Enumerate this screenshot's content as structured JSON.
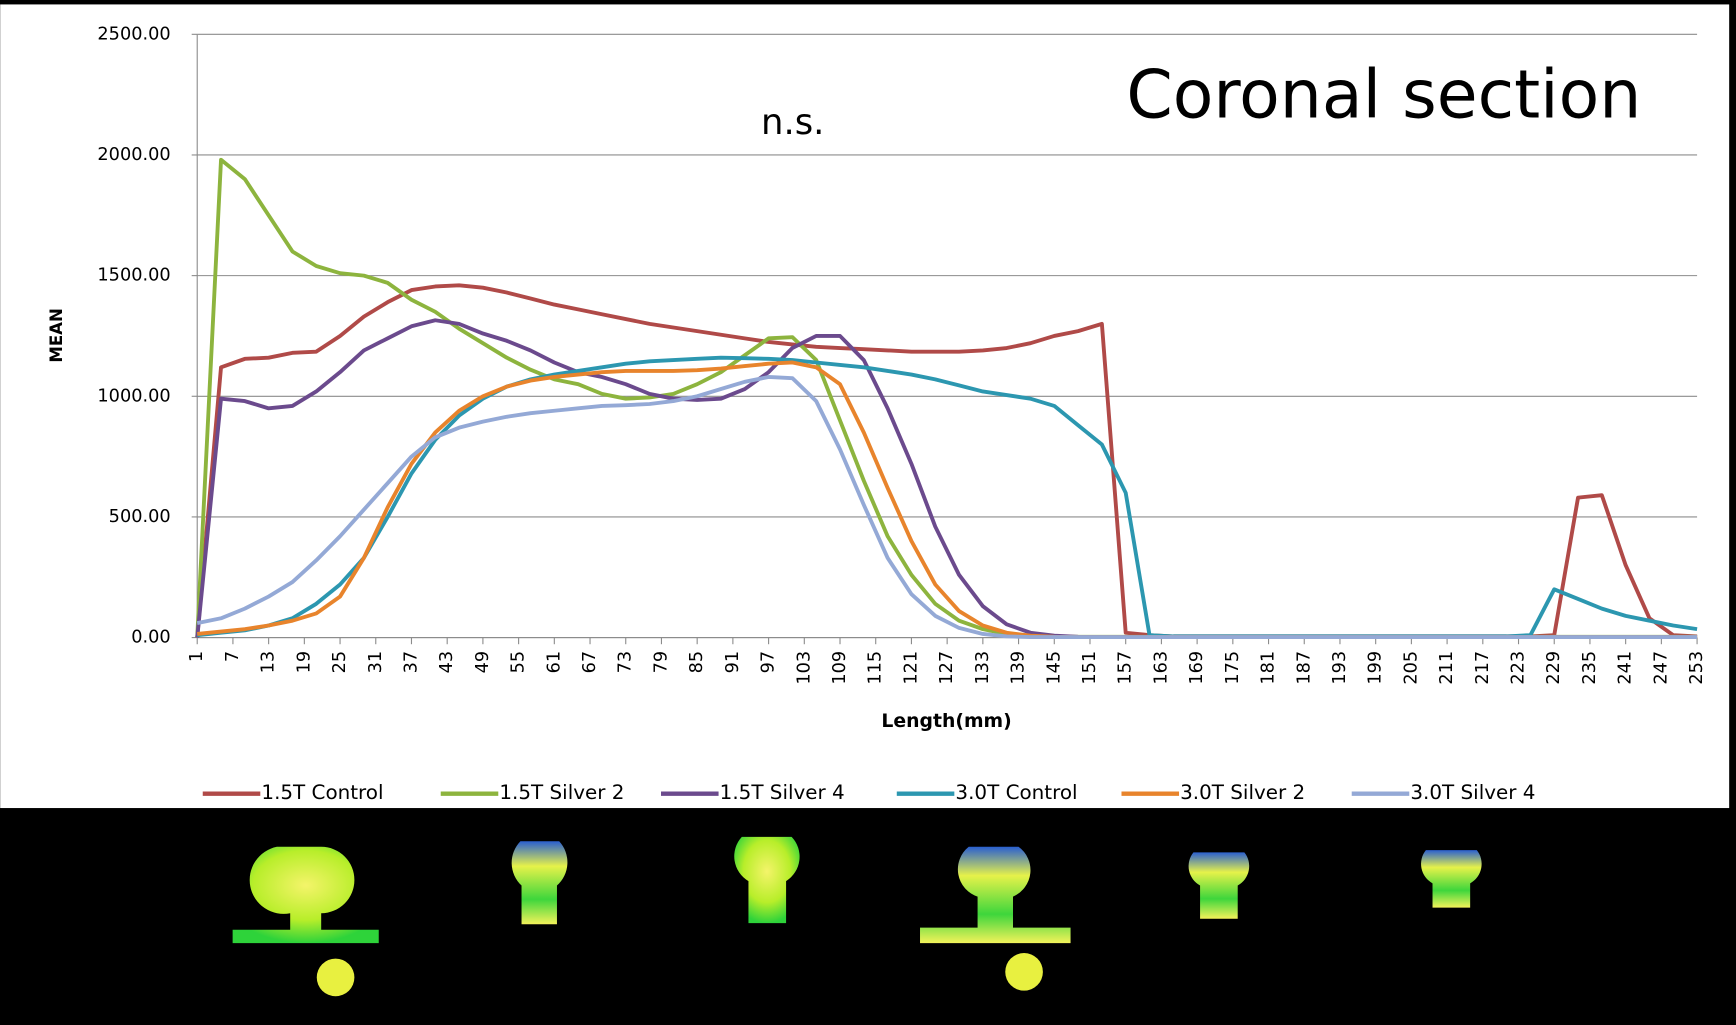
{
  "chart_data": {
    "type": "line",
    "title": "Coronal section",
    "annotation": "n.s.",
    "y_label": "MEAN",
    "x_label": "Length(mm)",
    "xlim": [
      1,
      253
    ],
    "xticks": [
      1,
      7,
      13,
      19,
      25,
      31,
      37,
      43,
      49,
      55,
      61,
      67,
      73,
      79,
      85,
      91,
      97,
      103,
      109,
      115,
      121,
      127,
      133,
      139,
      145,
      151,
      157,
      163,
      169,
      175,
      181,
      187,
      193,
      199,
      205,
      211,
      217,
      223,
      229,
      235,
      241,
      247,
      253
    ],
    "ylim": [
      0,
      2500
    ],
    "yticks": [
      {
        "value": 0,
        "label": "0.00"
      },
      {
        "value": 500,
        "label": "500.00"
      },
      {
        "value": 1000,
        "label": "1000.00"
      },
      {
        "value": 1500,
        "label": "1500.00"
      },
      {
        "value": 2000,
        "label": "2000.00"
      },
      {
        "value": 2500,
        "label": "2500.00"
      }
    ],
    "grid": true,
    "legend": "bottom",
    "x": [
      1,
      5,
      9,
      13,
      17,
      21,
      25,
      29,
      33,
      37,
      41,
      45,
      49,
      53,
      57,
      61,
      65,
      69,
      73,
      77,
      81,
      85,
      89,
      93,
      97,
      101,
      105,
      109,
      113,
      117,
      121,
      125,
      129,
      133,
      137,
      141,
      145,
      149,
      153,
      157,
      161,
      165,
      169,
      173,
      177,
      181,
      185,
      189,
      193,
      197,
      201,
      205,
      209,
      213,
      217,
      221,
      225,
      229,
      233,
      237,
      241,
      245,
      249,
      253
    ],
    "series": [
      {
        "name": "1.5T Control",
        "color": "#b04a48",
        "values": [
          0,
          1120,
          1155,
          1160,
          1180,
          1185,
          1250,
          1330,
          1390,
          1440,
          1455,
          1460,
          1450,
          1430,
          1405,
          1380,
          1360,
          1340,
          1320,
          1300,
          1285,
          1270,
          1255,
          1240,
          1225,
          1215,
          1205,
          1200,
          1195,
          1190,
          1185,
          1185,
          1185,
          1190,
          1200,
          1220,
          1250,
          1270,
          1300,
          20,
          10,
          5,
          5,
          5,
          5,
          5,
          5,
          5,
          5,
          5,
          5,
          5,
          5,
          5,
          5,
          5,
          5,
          10,
          580,
          590,
          300,
          80,
          10,
          5
        ]
      },
      {
        "name": "1.5T Silver 2",
        "color": "#8db43e",
        "values": [
          0,
          1980,
          1900,
          1750,
          1600,
          1540,
          1510,
          1500,
          1470,
          1400,
          1350,
          1280,
          1220,
          1160,
          1110,
          1070,
          1050,
          1010,
          990,
          995,
          1010,
          1050,
          1100,
          1170,
          1240,
          1245,
          1150,
          900,
          650,
          420,
          260,
          140,
          70,
          35,
          15,
          8,
          5,
          3,
          3,
          3,
          3,
          3,
          3,
          3,
          3,
          3,
          3,
          3,
          3,
          3,
          3,
          3,
          3,
          3,
          3,
          3,
          3,
          3,
          3,
          3,
          3,
          3,
          3,
          3
        ]
      },
      {
        "name": "1.5T Silver 4",
        "color": "#6b4a8d",
        "values": [
          0,
          990,
          980,
          950,
          960,
          1020,
          1100,
          1190,
          1240,
          1290,
          1315,
          1300,
          1260,
          1230,
          1190,
          1140,
          1100,
          1080,
          1050,
          1010,
          990,
          985,
          990,
          1030,
          1100,
          1200,
          1250,
          1250,
          1150,
          950,
          720,
          460,
          260,
          130,
          55,
          20,
          8,
          3,
          2,
          2,
          2,
          2,
          2,
          2,
          2,
          2,
          2,
          2,
          2,
          2,
          2,
          2,
          2,
          2,
          2,
          2,
          2,
          2,
          2,
          2,
          2,
          2,
          2,
          2
        ]
      },
      {
        "name": "3.0T Control",
        "color": "#2c97b0",
        "values": [
          10,
          20,
          30,
          50,
          80,
          140,
          220,
          330,
          500,
          680,
          820,
          920,
          990,
          1040,
          1070,
          1090,
          1105,
          1120,
          1135,
          1145,
          1150,
          1155,
          1160,
          1158,
          1155,
          1150,
          1140,
          1130,
          1120,
          1105,
          1090,
          1070,
          1045,
          1020,
          1005,
          990,
          960,
          880,
          800,
          600,
          10,
          5,
          5,
          5,
          5,
          5,
          5,
          5,
          5,
          5,
          5,
          5,
          5,
          5,
          5,
          5,
          10,
          200,
          160,
          120,
          90,
          70,
          50,
          35
        ]
      },
      {
        "name": "3.0T Silver 2",
        "color": "#e8842c",
        "values": [
          15,
          25,
          35,
          50,
          70,
          100,
          170,
          330,
          540,
          720,
          850,
          940,
          1000,
          1040,
          1065,
          1080,
          1090,
          1100,
          1105,
          1105,
          1105,
          1108,
          1115,
          1125,
          1135,
          1140,
          1120,
          1050,
          850,
          620,
          400,
          220,
          110,
          50,
          20,
          8,
          3,
          2,
          2,
          2,
          2,
          2,
          2,
          2,
          2,
          2,
          2,
          2,
          2,
          2,
          2,
          2,
          2,
          2,
          2,
          2,
          2,
          2,
          2,
          2,
          2,
          2,
          2,
          2
        ]
      },
      {
        "name": "3.0T Silver 4",
        "color": "#94a9d6",
        "values": [
          60,
          80,
          120,
          170,
          230,
          320,
          420,
          530,
          640,
          750,
          830,
          870,
          895,
          915,
          930,
          940,
          950,
          960,
          963,
          968,
          980,
          1000,
          1030,
          1060,
          1080,
          1075,
          980,
          780,
          550,
          330,
          180,
          90,
          40,
          15,
          5,
          2,
          2,
          2,
          2,
          2,
          2,
          2,
          2,
          2,
          2,
          2,
          2,
          2,
          2,
          2,
          2,
          2,
          2,
          2,
          2,
          2,
          2,
          2,
          2,
          2,
          2,
          2,
          2,
          2
        ]
      }
    ]
  }
}
